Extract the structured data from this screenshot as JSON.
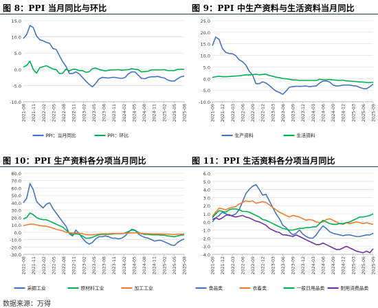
{
  "source": "数据来源：万得",
  "chart_data": [
    {
      "type": "line",
      "title": "图 8：PPI 当月同比与环比",
      "ylim": [
        -10,
        15
      ],
      "yticks": [
        "15.0",
        "10.0",
        "5.0",
        "0.0",
        "-5.0",
        "-10.0"
      ],
      "tick_labels": [
        "2021-08",
        "2021-11",
        "2022-02",
        "2022-05",
        "2022-08",
        "2022-11",
        "2023-02",
        "2023-05",
        "2023-08",
        "2023-11",
        "2024-02",
        "2024-05",
        "2024-08",
        "2024-11",
        "2025-02",
        "2025-05",
        "2025-08"
      ],
      "x_count": 50,
      "grid": true,
      "legend_position": "bottom",
      "series": [
        {
          "name": "PPI：当月同比",
          "color": "#4472c4",
          "values": [
            9.5,
            10.7,
            13.5,
            12.9,
            10.3,
            9.1,
            8.8,
            8.3,
            8.0,
            6.4,
            6.1,
            4.2,
            2.3,
            0.9,
            -1.3,
            -1.3,
            -0.8,
            -1.4,
            -2.5,
            -3.6,
            -4.6,
            -5.4,
            -4.4,
            -3.0,
            -2.5,
            -2.6,
            -2.7,
            -2.5,
            -2.5,
            -2.7,
            -2.8,
            -2.5,
            -1.4,
            -0.8,
            -0.8,
            -1.8,
            -2.8,
            -2.9,
            -2.5,
            -2.3,
            -2.3,
            -2.2,
            -2.5,
            -2.7,
            -3.3,
            -3.6,
            -3.6,
            -2.9,
            -2.3,
            -2.1
          ]
        },
        {
          "name": "PPI：环比",
          "color": "#00b050",
          "values": [
            0.7,
            1.2,
            2.5,
            0.0,
            -1.2,
            0.5,
            0.8,
            1.1,
            0.6,
            0.1,
            -0.1,
            -1.3,
            -1.2,
            0.1,
            -0.5,
            0.0,
            0.0,
            -0.4,
            -0.4,
            -0.9,
            -0.8,
            0.2,
            0.4,
            0.0,
            -0.3,
            -0.5,
            -0.3,
            -0.2,
            -0.2,
            -0.1,
            -0.3,
            -0.2,
            -0.1,
            0.2,
            0.0,
            -0.1,
            -0.8,
            -0.7,
            -0.6,
            -0.2,
            -0.2,
            -0.2,
            -0.2,
            -0.1,
            -0.4,
            -0.4,
            -0.4,
            0.0,
            0.0,
            0.0
          ]
        }
      ]
    },
    {
      "type": "line",
      "title": "图 9：PPI 中生产资料与生活资料当月同比",
      "ylim": [
        -10,
        25
      ],
      "yticks": [
        "25.0",
        "20.0",
        "15.0",
        "10.0",
        "5.0",
        "0.0",
        "-5.0",
        "-10.0"
      ],
      "tick_labels": [
        "2021-09",
        "2021-12",
        "2022-03",
        "2022-06",
        "2022-09",
        "2022-12",
        "2023-03",
        "2023-06",
        "2023-09",
        "2023-12",
        "2024-03",
        "2024-06",
        "2024-09",
        "2024-12",
        "2025-03",
        "2025-06",
        "2025-09"
      ],
      "x_count": 49,
      "grid": true,
      "legend_position": "bottom",
      "series": [
        {
          "name": "生产资料",
          "color": "#4472c4",
          "values": [
            14.2,
            17.9,
            16.9,
            13.0,
            11.3,
            10.8,
            10.7,
            9.9,
            8.1,
            7.3,
            5.8,
            3.2,
            1.5,
            -2.2,
            -2.2,
            -1.4,
            -1.9,
            -3.0,
            -4.3,
            -5.4,
            -6.0,
            -6.8,
            -5.4,
            -3.7,
            -3.5,
            -3.3,
            -3.4,
            -3.3,
            -3.2,
            -3.5,
            -3.3,
            -3.2,
            -1.9,
            -1.1,
            -1.0,
            -1.5,
            -2.8,
            -3.2,
            -3.1,
            -2.8,
            -2.8,
            -2.8,
            -3.1,
            -3.2,
            -3.8,
            -4.3,
            -4.4,
            -3.5,
            -2.4
          ]
        },
        {
          "name": "生活资料",
          "color": "#00b050",
          "values": [
            0.5,
            0.8,
            1.0,
            0.8,
            0.8,
            0.9,
            1.0,
            1.1,
            1.2,
            1.4,
            1.6,
            1.6,
            1.7,
            1.9,
            1.6,
            1.8,
            1.9,
            1.3,
            1.0,
            0.6,
            0.4,
            0.0,
            -0.1,
            -0.3,
            -0.6,
            -0.6,
            -0.8,
            -0.8,
            -0.8,
            -0.8,
            -0.8,
            -0.8,
            -0.3,
            -0.5,
            -0.5,
            -0.4,
            -0.6,
            -0.7,
            -0.8,
            -0.7,
            -1.0,
            -1.1,
            -1.2,
            -1.3,
            -1.5,
            -1.5,
            -1.7,
            -1.7,
            -1.6
          ]
        }
      ]
    },
    {
      "type": "line",
      "title": "图 10：PPI 生产资料各分项当月同比",
      "ylim": [
        -30,
        80
      ],
      "yticks": [
        "80.0",
        "70.0",
        "60.0",
        "50.0",
        "40.0",
        "30.0",
        "20.0",
        "10.0",
        "0.0",
        "-10.0",
        "-20.0",
        "-30.0"
      ],
      "tick_labels": [
        "2021-08",
        "2021-11",
        "2022-02",
        "2022-05",
        "2022-08",
        "2022-11",
        "2023-02",
        "2023-05",
        "2023-08",
        "2023-11",
        "2024-02",
        "2024-05",
        "2024-08",
        "2024-11",
        "2025-02",
        "2025-05",
        "2025-08"
      ],
      "x_count": 50,
      "grid": true,
      "legend_position": "bottom",
      "series": [
        {
          "name": "采掘工业",
          "color": "#4472c4",
          "values": [
            40.0,
            46.0,
            66.0,
            58.0,
            42.0,
            37.0,
            33.0,
            38.0,
            40.0,
            32.0,
            26.0,
            20.0,
            14.0,
            8.0,
            -2.0,
            -5.0,
            3.0,
            -2.0,
            -8.0,
            -13.0,
            -16.0,
            -14.0,
            -9.0,
            -6.0,
            -6.0,
            -5.0,
            -6.0,
            -8.0,
            -8.0,
            -9.0,
            -8.0,
            -5.0,
            0.0,
            4.0,
            3.0,
            -2.0,
            -5.0,
            -7.0,
            -8.0,
            -10.0,
            -12.0,
            -11.0,
            -11.0,
            -13.0,
            -15.0,
            -17.0,
            -18.0,
            -14.0,
            -11.0,
            -9.0
          ]
        },
        {
          "name": "原材料工业",
          "color": "#00b050",
          "values": [
            18.0,
            20.0,
            26.0,
            24.0,
            20.0,
            18.0,
            17.0,
            17.0,
            15.0,
            13.0,
            11.0,
            9.0,
            7.0,
            3.0,
            -1.0,
            -3.0,
            -2.0,
            -3.0,
            -5.0,
            -8.0,
            -8.0,
            -7.0,
            -5.0,
            -3.5,
            -3.0,
            -3.0,
            -3.0,
            -2.5,
            -2.0,
            -2.0,
            -2.0,
            -1.0,
            1.0,
            3.0,
            2.5,
            0.0,
            -2.0,
            -3.0,
            -3.0,
            -3.5,
            -3.5,
            -3.5,
            -4.0,
            -4.0,
            -5.0,
            -5.5,
            -6.0,
            -5.0,
            -4.0,
            -3.5
          ]
        },
        {
          "name": "加工工业",
          "color": "#ed7d31",
          "values": [
            9.0,
            10.0,
            11.0,
            11.0,
            10.0,
            9.0,
            8.5,
            8.0,
            7.0,
            5.5,
            4.0,
            3.0,
            2.0,
            0.0,
            -0.5,
            -1.0,
            -1.0,
            -1.2,
            -2.0,
            -3.0,
            -3.5,
            -3.5,
            -3.0,
            -2.5,
            -2.0,
            -2.0,
            -2.0,
            -1.8,
            -1.8,
            -1.8,
            -1.6,
            -1.5,
            -1.2,
            -0.8,
            -0.8,
            -1.0,
            -1.5,
            -1.8,
            -2.0,
            -2.0,
            -2.2,
            -2.2,
            -2.3,
            -2.4,
            -2.6,
            -2.8,
            -3.0,
            -2.8,
            -2.5,
            -2.3
          ]
        }
      ]
    },
    {
      "type": "line",
      "title": "图 11：PPI 生活资料各分项当月同比",
      "ylim": [
        -4,
        6
      ],
      "yticks": [
        "6.0",
        "5.0",
        "4.0",
        "3.0",
        "2.0",
        "1.0",
        "0.0",
        "-1.0",
        "-2.0",
        "-3.0",
        "-4.0"
      ],
      "tick_labels": [
        "2021-09",
        "2021-12",
        "2022-03",
        "2022-06",
        "2022-09",
        "2022-12",
        "2023-03",
        "2023-06",
        "2023-09",
        "2023-12",
        "2024-03",
        "2024-06",
        "2024-09",
        "2024-12",
        "2025-03",
        "2025-06",
        "2025-09"
      ],
      "x_count": 49,
      "grid": true,
      "legend_position": "bottom",
      "series": [
        {
          "name": "食品类",
          "color": "#4472c4",
          "values": [
            0.0,
            0.5,
            0.8,
            1.2,
            1.0,
            0.8,
            0.8,
            1.0,
            1.5,
            2.5,
            3.5,
            4.0,
            4.4,
            4.6,
            4.0,
            3.3,
            3.4,
            2.6,
            1.8,
            1.0,
            0.4,
            -0.4,
            -0.7,
            -1.2,
            -1.6,
            -1.4,
            -1.0,
            -1.5,
            -1.8,
            -2.0,
            -2.0,
            -1.6,
            -1.0,
            -0.5,
            -0.8,
            -1.2,
            -1.4,
            -1.5,
            -1.6,
            -1.7,
            -1.6,
            -1.6,
            -1.7,
            -1.8,
            -1.8,
            -1.7,
            -1.6,
            -1.6,
            -1.4
          ]
        },
        {
          "name": "衣着类",
          "color": "#ed7d31",
          "values": [
            0.7,
            1.2,
            1.7,
            1.6,
            1.5,
            1.7,
            1.8,
            1.9,
            2.2,
            2.4,
            2.6,
            2.5,
            2.6,
            2.3,
            2.4,
            2.5,
            2.4,
            2.1,
            1.8,
            1.5,
            1.2,
            1.0,
            0.8,
            0.6,
            0.8,
            0.7,
            0.6,
            0.4,
            0.2,
            0.3,
            0.2,
            0.0,
            -0.1,
            0.0,
            0.3,
            0.4,
            0.2,
            0.0,
            -0.2,
            -0.3,
            -0.1,
            -0.2,
            -0.1,
            0.0,
            -0.1,
            -0.2,
            -0.1,
            -0.2,
            -0.3
          ]
        },
        {
          "name": "一般日用品类",
          "color": "#00b050",
          "values": [
            0.5,
            1.0,
            1.4,
            1.3,
            1.2,
            1.5,
            1.6,
            1.6,
            1.5,
            1.3,
            1.3,
            1.2,
            1.0,
            0.8,
            0.6,
            0.3,
            0.2,
            0.0,
            -0.2,
            -0.4,
            -0.6,
            -0.8,
            -0.9,
            -1.0,
            -1.0,
            -0.9,
            -0.8,
            -0.8,
            -0.7,
            -0.7,
            -0.6,
            -0.6,
            -0.2,
            0.2,
            0.0,
            -0.2,
            -0.3,
            -0.3,
            -0.2,
            -0.2,
            -0.1,
            0.0,
            0.2,
            0.4,
            0.6,
            0.6,
            0.7,
            0.8,
            1.0
          ]
        },
        {
          "name": "耐用消费品类",
          "color": "#7030a0",
          "values": [
            0.3,
            0.5,
            0.3,
            0.5,
            0.8,
            0.9,
            0.7,
            0.6,
            0.7,
            0.8,
            0.6,
            0.5,
            0.3,
            0.1,
            0.0,
            -0.2,
            -0.4,
            -0.8,
            -1.0,
            -1.2,
            -1.3,
            -1.6,
            -1.6,
            -1.7,
            -1.8,
            -1.6,
            -1.8,
            -2.0,
            -2.2,
            -2.4,
            -2.6,
            -2.8,
            -2.8,
            -2.6,
            -2.8,
            -3.0,
            -3.2,
            -3.4,
            -3.4,
            -3.2,
            -3.0,
            -3.2,
            -3.4,
            -3.6,
            -3.7,
            -3.8,
            -3.6,
            -3.8,
            -3.3
          ]
        }
      ]
    }
  ]
}
